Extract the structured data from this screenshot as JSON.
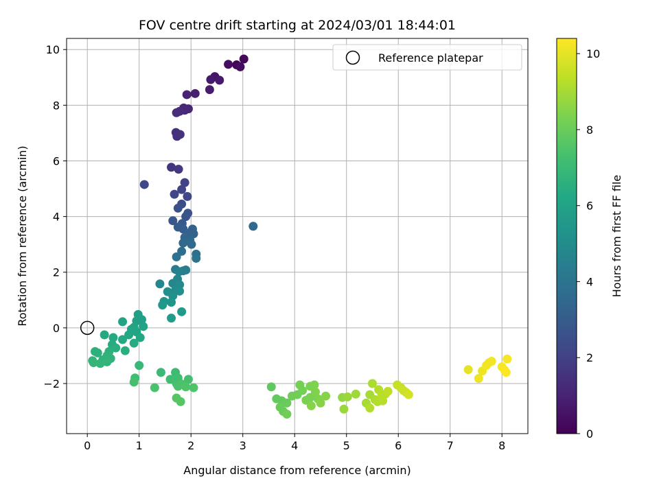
{
  "chart_data": {
    "type": "scatter",
    "title": "FOV centre drift starting at 2024/03/01 18:44:01",
    "xlabel": "Angular distance from reference (arcmin)",
    "ylabel": "Rotation from reference (arcmin)",
    "xlim": [
      -0.4,
      8.5
    ],
    "ylim": [
      -3.8,
      10.4
    ],
    "xticks": [
      0,
      1,
      2,
      3,
      4,
      5,
      6,
      7,
      8
    ],
    "yticks": [
      -2,
      0,
      2,
      4,
      6,
      8,
      10
    ],
    "grid": true,
    "legend": {
      "placement": "top-right",
      "entries": [
        "Reference platepar"
      ]
    },
    "reference_point": {
      "x": 0,
      "y": 0,
      "label": "Reference platepar"
    },
    "colorbar": {
      "label": "Hours from first FF file",
      "colormap": "viridis",
      "range": [
        0,
        10.4
      ],
      "ticks": [
        0,
        2,
        4,
        6,
        8,
        10
      ]
    },
    "points": [
      {
        "x": 2.88,
        "y": 9.45,
        "h": 0.1
      },
      {
        "x": 3.02,
        "y": 9.66,
        "h": 0.2
      },
      {
        "x": 2.95,
        "y": 9.38,
        "h": 0.3
      },
      {
        "x": 2.72,
        "y": 9.47,
        "h": 0.4
      },
      {
        "x": 2.46,
        "y": 9.03,
        "h": 0.6
      },
      {
        "x": 2.38,
        "y": 8.92,
        "h": 0.7
      },
      {
        "x": 2.55,
        "y": 8.9,
        "h": 0.7
      },
      {
        "x": 2.36,
        "y": 8.56,
        "h": 0.8
      },
      {
        "x": 2.08,
        "y": 8.42,
        "h": 0.9
      },
      {
        "x": 1.92,
        "y": 8.38,
        "h": 1.0
      },
      {
        "x": 1.95,
        "y": 7.87,
        "h": 1.1
      },
      {
        "x": 1.86,
        "y": 7.9,
        "h": 1.2
      },
      {
        "x": 1.88,
        "y": 7.82,
        "h": 1.2
      },
      {
        "x": 1.78,
        "y": 7.78,
        "h": 1.3
      },
      {
        "x": 1.72,
        "y": 7.73,
        "h": 1.3
      },
      {
        "x": 1.71,
        "y": 7.02,
        "h": 1.4
      },
      {
        "x": 1.79,
        "y": 6.95,
        "h": 1.5
      },
      {
        "x": 1.73,
        "y": 6.88,
        "h": 1.5
      },
      {
        "x": 1.62,
        "y": 5.77,
        "h": 1.6
      },
      {
        "x": 1.76,
        "y": 5.7,
        "h": 1.7
      },
      {
        "x": 1.1,
        "y": 5.15,
        "h": 2.2
      },
      {
        "x": 1.88,
        "y": 5.22,
        "h": 2.0
      },
      {
        "x": 1.82,
        "y": 4.97,
        "h": 2.1
      },
      {
        "x": 1.68,
        "y": 4.8,
        "h": 2.2
      },
      {
        "x": 1.93,
        "y": 4.72,
        "h": 2.2
      },
      {
        "x": 1.82,
        "y": 4.45,
        "h": 2.4
      },
      {
        "x": 1.75,
        "y": 4.3,
        "h": 2.5
      },
      {
        "x": 1.94,
        "y": 4.12,
        "h": 2.6
      },
      {
        "x": 1.9,
        "y": 4.0,
        "h": 2.7
      },
      {
        "x": 1.65,
        "y": 3.85,
        "h": 2.8
      },
      {
        "x": 1.83,
        "y": 3.75,
        "h": 2.9
      },
      {
        "x": 3.2,
        "y": 3.65,
        "h": 3.5
      },
      {
        "x": 1.75,
        "y": 3.62,
        "h": 3.0
      },
      {
        "x": 1.85,
        "y": 3.55,
        "h": 3.1
      },
      {
        "x": 2.03,
        "y": 3.55,
        "h": 3.2
      },
      {
        "x": 1.95,
        "y": 3.4,
        "h": 3.2
      },
      {
        "x": 2.05,
        "y": 3.38,
        "h": 3.3
      },
      {
        "x": 1.88,
        "y": 3.25,
        "h": 3.4
      },
      {
        "x": 1.98,
        "y": 3.15,
        "h": 3.4
      },
      {
        "x": 1.85,
        "y": 3.05,
        "h": 3.5
      },
      {
        "x": 2.01,
        "y": 3.0,
        "h": 3.6
      },
      {
        "x": 1.82,
        "y": 2.75,
        "h": 3.7
      },
      {
        "x": 2.1,
        "y": 2.65,
        "h": 3.8
      },
      {
        "x": 1.72,
        "y": 2.55,
        "h": 3.9
      },
      {
        "x": 2.1,
        "y": 2.5,
        "h": 4.0
      },
      {
        "x": 1.7,
        "y": 2.1,
        "h": 4.3
      },
      {
        "x": 1.85,
        "y": 2.05,
        "h": 4.4
      },
      {
        "x": 1.9,
        "y": 2.08,
        "h": 4.4
      },
      {
        "x": 1.77,
        "y": 2.02,
        "h": 4.5
      },
      {
        "x": 1.74,
        "y": 1.75,
        "h": 4.7
      },
      {
        "x": 1.65,
        "y": 1.6,
        "h": 4.8
      },
      {
        "x": 1.4,
        "y": 1.58,
        "h": 4.8
      },
      {
        "x": 1.78,
        "y": 1.55,
        "h": 4.9
      },
      {
        "x": 1.7,
        "y": 1.35,
        "h": 5.0
      },
      {
        "x": 1.55,
        "y": 1.3,
        "h": 5.1
      },
      {
        "x": 1.78,
        "y": 1.32,
        "h": 5.1
      },
      {
        "x": 1.65,
        "y": 1.15,
        "h": 5.2
      },
      {
        "x": 1.48,
        "y": 0.95,
        "h": 5.4
      },
      {
        "x": 1.62,
        "y": 0.92,
        "h": 5.4
      },
      {
        "x": 1.45,
        "y": 0.82,
        "h": 5.5
      },
      {
        "x": 1.82,
        "y": 0.58,
        "h": 5.6
      },
      {
        "x": 1.62,
        "y": 0.35,
        "h": 5.7
      },
      {
        "x": 0.98,
        "y": 0.48,
        "h": 5.8
      },
      {
        "x": 1.05,
        "y": 0.3,
        "h": 5.9
      },
      {
        "x": 0.68,
        "y": 0.22,
        "h": 6.0
      },
      {
        "x": 0.95,
        "y": 0.25,
        "h": 5.9
      },
      {
        "x": 1.08,
        "y": 0.05,
        "h": 6.0
      },
      {
        "x": 0.9,
        "y": 0.02,
        "h": 6.0
      },
      {
        "x": 0.85,
        "y": -0.05,
        "h": 6.1
      },
      {
        "x": 0.95,
        "y": -0.15,
        "h": 6.1
      },
      {
        "x": 0.8,
        "y": -0.25,
        "h": 6.2
      },
      {
        "x": 1.02,
        "y": -0.35,
        "h": 6.2
      },
      {
        "x": 0.33,
        "y": -0.25,
        "h": 6.3
      },
      {
        "x": 0.5,
        "y": -0.35,
        "h": 6.3
      },
      {
        "x": 0.68,
        "y": -0.42,
        "h": 6.3
      },
      {
        "x": 0.9,
        "y": -0.55,
        "h": 6.4
      },
      {
        "x": 0.48,
        "y": -0.6,
        "h": 6.4
      },
      {
        "x": 0.55,
        "y": -0.72,
        "h": 6.5
      },
      {
        "x": 0.73,
        "y": -0.82,
        "h": 6.5
      },
      {
        "x": 0.42,
        "y": -0.85,
        "h": 6.6
      },
      {
        "x": 0.15,
        "y": -0.85,
        "h": 6.6
      },
      {
        "x": 0.2,
        "y": -0.9,
        "h": 6.6
      },
      {
        "x": 0.38,
        "y": -1.0,
        "h": 6.7
      },
      {
        "x": 0.45,
        "y": -1.1,
        "h": 6.7
      },
      {
        "x": 0.3,
        "y": -1.15,
        "h": 6.7
      },
      {
        "x": 0.12,
        "y": -1.25,
        "h": 6.8
      },
      {
        "x": 0.25,
        "y": -1.28,
        "h": 6.8
      },
      {
        "x": 0.38,
        "y": -1.22,
        "h": 6.8
      },
      {
        "x": 0.1,
        "y": -1.18,
        "h": 6.8
      },
      {
        "x": 1.0,
        "y": -1.35,
        "h": 6.9
      },
      {
        "x": 1.42,
        "y": -1.6,
        "h": 7.0
      },
      {
        "x": 1.7,
        "y": -1.6,
        "h": 7.1
      },
      {
        "x": 0.92,
        "y": -1.8,
        "h": 7.2
      },
      {
        "x": 1.6,
        "y": -1.85,
        "h": 7.2
      },
      {
        "x": 1.75,
        "y": -1.8,
        "h": 7.2
      },
      {
        "x": 1.95,
        "y": -1.85,
        "h": 7.3
      },
      {
        "x": 0.9,
        "y": -1.95,
        "h": 7.3
      },
      {
        "x": 1.72,
        "y": -2.0,
        "h": 7.3
      },
      {
        "x": 1.82,
        "y": -2.02,
        "h": 7.4
      },
      {
        "x": 1.3,
        "y": -2.15,
        "h": 7.4
      },
      {
        "x": 1.75,
        "y": -2.1,
        "h": 7.4
      },
      {
        "x": 1.9,
        "y": -2.12,
        "h": 7.5
      },
      {
        "x": 2.05,
        "y": -2.15,
        "h": 7.5
      },
      {
        "x": 1.72,
        "y": -2.52,
        "h": 7.6
      },
      {
        "x": 1.8,
        "y": -2.65,
        "h": 7.6
      },
      {
        "x": 3.55,
        "y": -2.12,
        "h": 7.8
      },
      {
        "x": 3.65,
        "y": -2.55,
        "h": 7.9
      },
      {
        "x": 3.75,
        "y": -2.62,
        "h": 7.9
      },
      {
        "x": 3.85,
        "y": -2.7,
        "h": 8.0
      },
      {
        "x": 3.72,
        "y": -2.85,
        "h": 8.0
      },
      {
        "x": 3.78,
        "y": -3.0,
        "h": 8.0
      },
      {
        "x": 3.85,
        "y": -3.1,
        "h": 8.1
      },
      {
        "x": 3.95,
        "y": -2.45,
        "h": 8.1
      },
      {
        "x": 4.05,
        "y": -2.4,
        "h": 8.1
      },
      {
        "x": 4.1,
        "y": -2.05,
        "h": 8.2
      },
      {
        "x": 4.15,
        "y": -2.25,
        "h": 8.2
      },
      {
        "x": 4.22,
        "y": -2.6,
        "h": 8.3
      },
      {
        "x": 4.3,
        "y": -2.5,
        "h": 8.3
      },
      {
        "x": 4.3,
        "y": -2.1,
        "h": 8.3
      },
      {
        "x": 4.38,
        "y": -2.05,
        "h": 8.4
      },
      {
        "x": 4.4,
        "y": -2.3,
        "h": 8.4
      },
      {
        "x": 4.45,
        "y": -2.55,
        "h": 8.4
      },
      {
        "x": 4.32,
        "y": -2.8,
        "h": 8.5
      },
      {
        "x": 4.5,
        "y": -2.7,
        "h": 8.5
      },
      {
        "x": 4.6,
        "y": -2.45,
        "h": 8.5
      },
      {
        "x": 4.92,
        "y": -2.5,
        "h": 8.7
      },
      {
        "x": 4.95,
        "y": -2.92,
        "h": 8.8
      },
      {
        "x": 5.02,
        "y": -2.48,
        "h": 8.8
      },
      {
        "x": 5.18,
        "y": -2.38,
        "h": 8.9
      },
      {
        "x": 5.38,
        "y": -2.7,
        "h": 9.0
      },
      {
        "x": 5.45,
        "y": -2.4,
        "h": 9.0
      },
      {
        "x": 5.5,
        "y": -2.0,
        "h": 9.1
      },
      {
        "x": 5.55,
        "y": -2.58,
        "h": 9.1
      },
      {
        "x": 5.45,
        "y": -2.88,
        "h": 9.2
      },
      {
        "x": 5.6,
        "y": -2.65,
        "h": 9.2
      },
      {
        "x": 5.62,
        "y": -2.22,
        "h": 9.2
      },
      {
        "x": 5.68,
        "y": -2.4,
        "h": 9.3
      },
      {
        "x": 5.7,
        "y": -2.62,
        "h": 9.3
      },
      {
        "x": 5.75,
        "y": -2.38,
        "h": 9.3
      },
      {
        "x": 5.8,
        "y": -2.28,
        "h": 9.4
      },
      {
        "x": 5.98,
        "y": -2.05,
        "h": 9.5
      },
      {
        "x": 6.05,
        "y": -2.15,
        "h": 9.5
      },
      {
        "x": 6.1,
        "y": -2.25,
        "h": 9.6
      },
      {
        "x": 6.15,
        "y": -2.32,
        "h": 9.6
      },
      {
        "x": 6.2,
        "y": -2.4,
        "h": 9.7
      },
      {
        "x": 7.35,
        "y": -1.5,
        "h": 10.0
      },
      {
        "x": 7.55,
        "y": -1.82,
        "h": 10.1
      },
      {
        "x": 7.62,
        "y": -1.55,
        "h": 10.1
      },
      {
        "x": 7.7,
        "y": -1.35,
        "h": 10.2
      },
      {
        "x": 7.75,
        "y": -1.25,
        "h": 10.2
      },
      {
        "x": 7.8,
        "y": -1.2,
        "h": 10.2
      },
      {
        "x": 8.0,
        "y": -1.4,
        "h": 10.3
      },
      {
        "x": 8.05,
        "y": -1.52,
        "h": 10.3
      },
      {
        "x": 8.1,
        "y": -1.12,
        "h": 10.3
      },
      {
        "x": 8.08,
        "y": -1.6,
        "h": 10.4
      }
    ]
  }
}
